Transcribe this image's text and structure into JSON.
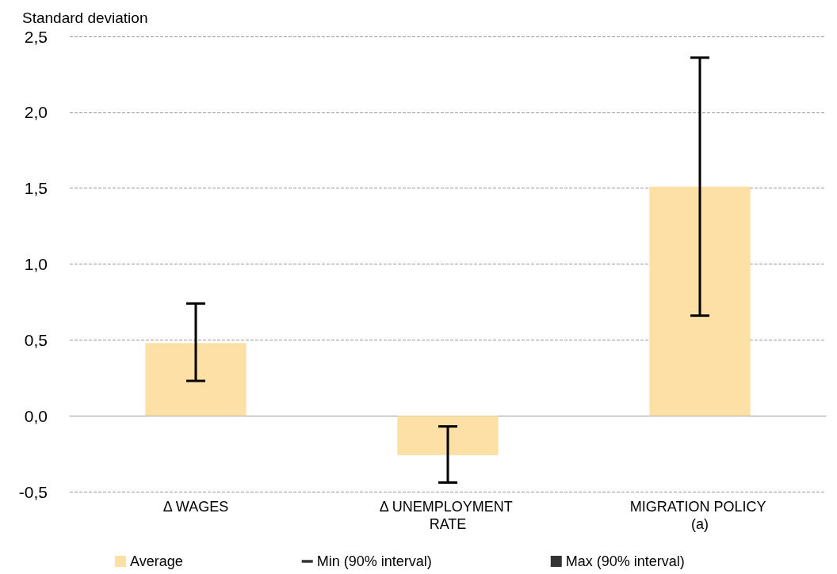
{
  "chart_data": {
    "type": "bar",
    "ylabel": "Standard deviation",
    "categories": [
      "Δ WAGES",
      "Δ UNEMPLOYMENT RATE",
      "MIGRATION POLICY (a)"
    ],
    "series": [
      {
        "name": "Average",
        "color": "#fde0a6",
        "values": [
          0.48,
          -0.26,
          1.51
        ],
        "errors": [
          [
            0.23,
            0.74
          ],
          [
            -0.44,
            -0.07
          ],
          [
            0.66,
            2.36
          ]
        ]
      },
      {
        "name": "Min (90% interval)",
        "type": "scatter",
        "color": "#000000",
        "values": [
          null,
          null,
          null
        ]
      },
      {
        "name": "Max (90% interval)",
        "type": "scatter",
        "color": "#000000",
        "values": [
          null,
          null,
          null
        ]
      }
    ],
    "ylim": [
      -0.5,
      2.5
    ],
    "yticks": [
      {
        "value": -0.5,
        "label": "-0,5"
      },
      {
        "value": 0,
        "label": "0,0"
      },
      {
        "value": 0.5,
        "label": "0,5"
      },
      {
        "value": 1,
        "label": "1,0"
      },
      {
        "value": 1.5,
        "label": "1,5"
      },
      {
        "value": 2,
        "label": "2,0"
      },
      {
        "value": 2.5,
        "label": "2,5"
      }
    ],
    "grid": "y",
    "legend": "bottom"
  }
}
